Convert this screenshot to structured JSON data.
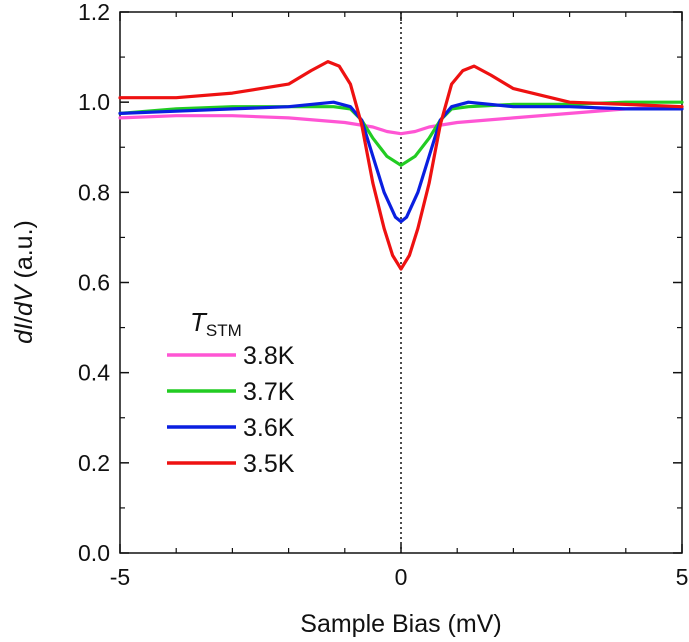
{
  "chart_data": {
    "type": "line",
    "xlabel": "Sample Bias (mV)",
    "ylabel_parts": [
      "dI",
      "/",
      "dV",
      " (a.u.)"
    ],
    "xlim": [
      -5,
      5
    ],
    "ylim": [
      0.0,
      1.2
    ],
    "x_ticks": [
      -5,
      0,
      5
    ],
    "x_tick_labels": [
      "-5",
      "0",
      "5"
    ],
    "y_ticks": [
      0.0,
      0.2,
      0.4,
      0.6,
      0.8,
      1.0,
      1.2
    ],
    "y_tick_labels": [
      "0.0",
      "0.2",
      "0.4",
      "0.6",
      "0.8",
      "1.0",
      "1.2"
    ],
    "zero_line": true,
    "grid": false,
    "legend": {
      "placement": "lower-left",
      "title_main": "T",
      "title_sub": "STM"
    },
    "series": [
      {
        "name": "3.8K",
        "color": "#ff55d4",
        "x": [
          -5,
          -4,
          -3,
          -2,
          -1,
          -0.5,
          -0.25,
          0,
          0.25,
          0.5,
          1,
          2,
          3,
          4,
          5
        ],
        "values": [
          0.965,
          0.97,
          0.97,
          0.965,
          0.955,
          0.945,
          0.935,
          0.93,
          0.935,
          0.945,
          0.955,
          0.965,
          0.975,
          0.985,
          0.99
        ]
      },
      {
        "name": "3.7K",
        "color": "#22cc22",
        "x": [
          -5,
          -4,
          -3,
          -2,
          -1.2,
          -0.9,
          -0.7,
          -0.5,
          -0.25,
          0,
          0.25,
          0.5,
          0.7,
          0.9,
          1.2,
          2,
          3,
          4,
          5
        ],
        "values": [
          0.975,
          0.985,
          0.99,
          0.99,
          0.99,
          0.985,
          0.96,
          0.92,
          0.88,
          0.86,
          0.88,
          0.92,
          0.96,
          0.985,
          0.99,
          0.995,
          0.995,
          1.0,
          1.0
        ]
      },
      {
        "name": "3.6K",
        "color": "#0a1fe0",
        "x": [
          -5,
          -4,
          -3,
          -2,
          -1.2,
          -0.9,
          -0.7,
          -0.5,
          -0.3,
          -0.1,
          0,
          0.1,
          0.3,
          0.5,
          0.7,
          0.9,
          1.2,
          2,
          3,
          4,
          5
        ],
        "values": [
          0.975,
          0.98,
          0.985,
          0.99,
          1.0,
          0.99,
          0.96,
          0.88,
          0.8,
          0.745,
          0.735,
          0.745,
          0.8,
          0.88,
          0.96,
          0.99,
          1.0,
          0.99,
          0.99,
          0.985,
          0.985
        ]
      },
      {
        "name": "3.5K",
        "color": "#ee1111",
        "x": [
          -5,
          -4,
          -3,
          -2,
          -1.6,
          -1.3,
          -1.1,
          -0.9,
          -0.7,
          -0.5,
          -0.3,
          -0.15,
          0,
          0.15,
          0.3,
          0.5,
          0.7,
          0.9,
          1.1,
          1.3,
          1.6,
          2,
          3,
          4,
          5
        ],
        "values": [
          1.01,
          1.01,
          1.02,
          1.04,
          1.07,
          1.09,
          1.08,
          1.04,
          0.95,
          0.82,
          0.72,
          0.66,
          0.63,
          0.66,
          0.72,
          0.82,
          0.95,
          1.04,
          1.07,
          1.08,
          1.06,
          1.03,
          1.0,
          0.995,
          0.99
        ]
      }
    ]
  }
}
